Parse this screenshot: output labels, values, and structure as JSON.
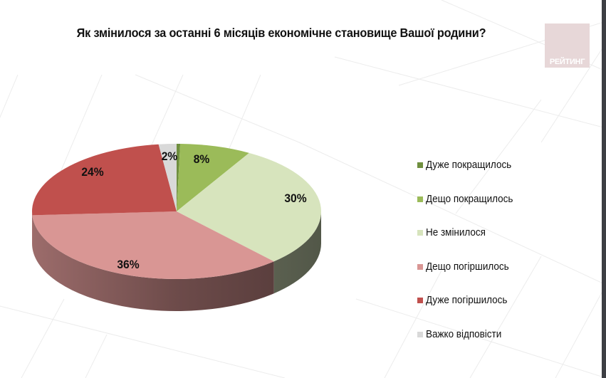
{
  "title": "Як змінилося за останні 6 місяців економічне становище Вашої родини?",
  "logo": {
    "text": "РЕЙТИНГ",
    "color": "#e7d7d8"
  },
  "chart_data": {
    "type": "pie",
    "style": "3d",
    "title": "Як змінилося за останні 6 місяців економічне становище Вашої родини?",
    "legend_position": "right",
    "categories": [
      "Дуже покращилось",
      "Дещо покращилось",
      "Не змінилося",
      "Дещо погіршилось",
      "Дуже погіршилось",
      "Важко відповісти"
    ],
    "values": [
      0.4,
      8,
      30,
      36,
      24,
      2
    ],
    "labels": [
      "",
      "8%",
      "30%",
      "36%",
      "24%",
      "2%"
    ],
    "colors": [
      "#6f8f3e",
      "#9bbb59",
      "#d7e4bd",
      "#d99694",
      "#c0504d",
      "#d9d9d9"
    ]
  },
  "legend": {
    "items": [
      {
        "label": "Дуже покращилось",
        "color": "#6f8f3e"
      },
      {
        "label": "Дещо покращилось",
        "color": "#9bbb59"
      },
      {
        "label": "Не змінилося",
        "color": "#d7e4bd"
      },
      {
        "label": "Дещо погіршилось",
        "color": "#d99694"
      },
      {
        "label": "Дуже погіршилось",
        "color": "#c0504d"
      },
      {
        "label": "Важко відповісти",
        "color": "#d9d9d9"
      }
    ]
  }
}
